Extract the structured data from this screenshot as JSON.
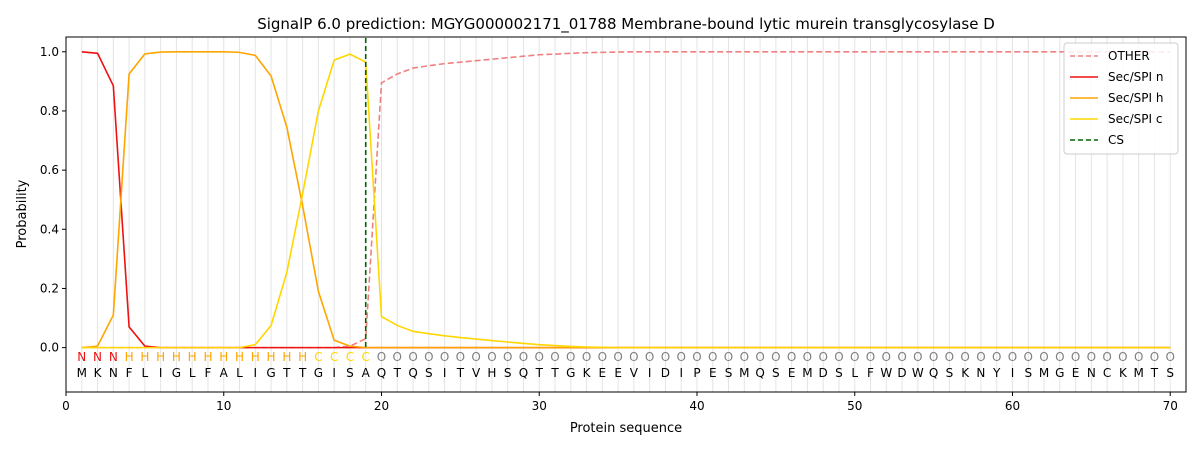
{
  "chart_data": {
    "type": "line",
    "title": "SignalP 6.0 prediction: MGYG000002171_01788 Membrane-bound lytic murein transglycosylase D",
    "xlabel": "Protein sequence",
    "ylabel": "Probability",
    "xlim": [
      0,
      71
    ],
    "ylim": [
      -0.15,
      1.05
    ],
    "xticks": [
      0,
      10,
      20,
      30,
      40,
      50,
      60,
      70
    ],
    "yticks": [
      0.0,
      0.2,
      0.4,
      0.6,
      0.8,
      1.0
    ],
    "tick_labels_x": [
      "0",
      "10",
      "20",
      "30",
      "40",
      "50",
      "60",
      "70"
    ],
    "tick_labels_y": [
      "0.0",
      "0.2",
      "0.4",
      "0.6",
      "0.8",
      "1.0"
    ],
    "legend_position": "top-right",
    "x": [
      1,
      2,
      3,
      4,
      5,
      6,
      7,
      8,
      9,
      10,
      11,
      12,
      13,
      14,
      15,
      16,
      17,
      18,
      19,
      20,
      21,
      22,
      23,
      24,
      25,
      26,
      27,
      28,
      29,
      30,
      31,
      32,
      33,
      34,
      35,
      36,
      37,
      38,
      39,
      40,
      41,
      42,
      43,
      44,
      45,
      46,
      47,
      48,
      49,
      50,
      51,
      52,
      53,
      54,
      55,
      56,
      57,
      58,
      59,
      60,
      61,
      62,
      63,
      64,
      65,
      66,
      67,
      68,
      69,
      70
    ],
    "series": [
      {
        "name": "OTHER",
        "color": "#f08080",
        "dash": true,
        "values": [
          0,
          0,
          0,
          0,
          0,
          0,
          0,
          0,
          0,
          0,
          0,
          0,
          0,
          0,
          0,
          0,
          0,
          0.005,
          0.03,
          0.895,
          0.925,
          0.945,
          0.953,
          0.96,
          0.965,
          0.97,
          0.975,
          0.98,
          0.985,
          0.99,
          0.992,
          0.995,
          0.997,
          0.998,
          0.999,
          1,
          1,
          1,
          1,
          1,
          1,
          1,
          1,
          1,
          1,
          1,
          1,
          1,
          1,
          1,
          1,
          1,
          1,
          1,
          1,
          1,
          1,
          1,
          1,
          1,
          1,
          1,
          1,
          1,
          1,
          1,
          1,
          1,
          1,
          1
        ]
      },
      {
        "name": "Sec/SPI n",
        "color": "#ee1111",
        "dash": false,
        "values": [
          1.0,
          0.995,
          0.885,
          0.07,
          0.005,
          0,
          0,
          0,
          0,
          0,
          0,
          0,
          0,
          0,
          0,
          0,
          0,
          0,
          0,
          0,
          0,
          0,
          0,
          0,
          0,
          0,
          0,
          0,
          0,
          0,
          0,
          0,
          0,
          0,
          0,
          0,
          0,
          0,
          0,
          0,
          0,
          0,
          0,
          0,
          0,
          0,
          0,
          0,
          0,
          0,
          0,
          0,
          0,
          0,
          0,
          0,
          0,
          0,
          0,
          0,
          0,
          0,
          0,
          0,
          0,
          0,
          0,
          0,
          0,
          0
        ]
      },
      {
        "name": "Sec/SPI h",
        "color": "#ffa500",
        "dash": false,
        "values": [
          0,
          0.005,
          0.11,
          0.925,
          0.993,
          0.999,
          1,
          1,
          1,
          1,
          0.998,
          0.988,
          0.918,
          0.745,
          0.48,
          0.19,
          0.025,
          0.005,
          0,
          0,
          0,
          0,
          0,
          0,
          0,
          0,
          0,
          0,
          0,
          0,
          0,
          0,
          0,
          0,
          0,
          0,
          0,
          0,
          0,
          0,
          0,
          0,
          0,
          0,
          0,
          0,
          0,
          0,
          0,
          0,
          0,
          0,
          0,
          0,
          0,
          0,
          0,
          0,
          0,
          0,
          0,
          0,
          0,
          0,
          0,
          0,
          0,
          0,
          0,
          0
        ]
      },
      {
        "name": "Sec/SPI c",
        "color": "#ffd700",
        "dash": false,
        "values": [
          0,
          0,
          0,
          0,
          0,
          0,
          0,
          0,
          0,
          0,
          0,
          0.01,
          0.075,
          0.255,
          0.52,
          0.8,
          0.972,
          0.992,
          0.965,
          0.105,
          0.075,
          0.055,
          0.047,
          0.04,
          0.034,
          0.029,
          0.024,
          0.019,
          0.014,
          0.01,
          0.007,
          0.004,
          0.002,
          0.001,
          0,
          0,
          0,
          0,
          0,
          0,
          0,
          0,
          0,
          0,
          0,
          0,
          0,
          0,
          0,
          0,
          0,
          0,
          0,
          0,
          0,
          0,
          0,
          0,
          0,
          0,
          0,
          0,
          0,
          0,
          0,
          0,
          0,
          0,
          0,
          0
        ]
      }
    ],
    "cs_marker": {
      "name": "CS",
      "x": 19,
      "color": "#006400"
    },
    "sequence": [
      "M",
      "K",
      "N",
      "F",
      "L",
      "I",
      "G",
      "L",
      "F",
      "A",
      "L",
      "I",
      "G",
      "T",
      "T",
      "G",
      "I",
      "S",
      "A",
      "Q",
      "T",
      "Q",
      "S",
      "I",
      "T",
      "V",
      "H",
      "S",
      "Q",
      "T",
      "T",
      "G",
      "K",
      "E",
      "E",
      "V",
      "I",
      "D",
      "I",
      "P",
      "E",
      "S",
      "M",
      "Q",
      "S",
      "E",
      "M",
      "D",
      "S",
      "L",
      "F",
      "W",
      "D",
      "W",
      "Q",
      "S",
      "K",
      "N",
      "Y",
      "I",
      "S",
      "M",
      "G",
      "E",
      "N",
      "C",
      "K",
      "M",
      "T",
      "S"
    ],
    "region_labels": [
      "N",
      "N",
      "N",
      "H",
      "H",
      "H",
      "H",
      "H",
      "H",
      "H",
      "H",
      "H",
      "H",
      "H",
      "H",
      "C",
      "C",
      "C",
      "C",
      "O",
      "O",
      "O",
      "O",
      "O",
      "O",
      "O",
      "O",
      "O",
      "O",
      "O",
      "O",
      "O",
      "O",
      "O",
      "O",
      "O",
      "O",
      "O",
      "O",
      "O",
      "O",
      "O",
      "O",
      "O",
      "O",
      "O",
      "O",
      "O",
      "O",
      "O",
      "O",
      "O",
      "O",
      "O",
      "O",
      "O",
      "O",
      "O",
      "O",
      "O",
      "O",
      "O",
      "O",
      "O",
      "O",
      "O",
      "O",
      "O",
      "O",
      "O"
    ],
    "region_colors": {
      "N": "#ee1111",
      "H": "#ffa500",
      "C": "#ffd700",
      "O": "#808080"
    }
  }
}
